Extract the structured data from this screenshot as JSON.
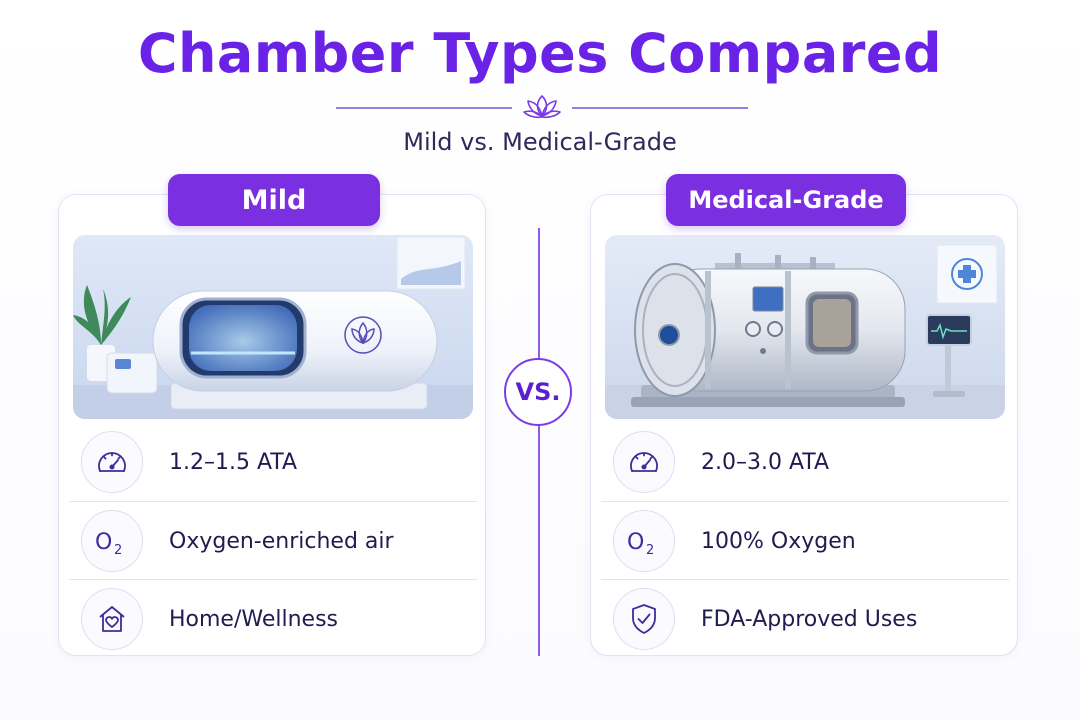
{
  "header": {
    "title": "Chamber Types Compared",
    "subtitle": "Mild vs. Medical-Grade",
    "ornament_icon": "lotus-icon"
  },
  "vs_label": "VS.",
  "colors": {
    "accent": "#7a2fe0",
    "title": "#6a23e6",
    "text": "#1f1c50",
    "divider": "#8f5be8"
  },
  "cards": [
    {
      "label": "Mild",
      "image": "mild-chamber-photo",
      "features": [
        {
          "icon": "gauge-icon",
          "text": "1.2–1.5 ATA"
        },
        {
          "icon": "oxygen-icon",
          "text": "Oxygen-enriched air"
        },
        {
          "icon": "home-heart-icon",
          "text": "Home/Wellness"
        }
      ]
    },
    {
      "label": "Medical-Grade",
      "image": "medical-chamber-photo",
      "features": [
        {
          "icon": "gauge-icon",
          "text": "2.0–3.0 ATA"
        },
        {
          "icon": "oxygen-icon",
          "text": "100% Oxygen"
        },
        {
          "icon": "shield-check-icon",
          "text": "FDA-Approved Uses"
        }
      ]
    }
  ]
}
